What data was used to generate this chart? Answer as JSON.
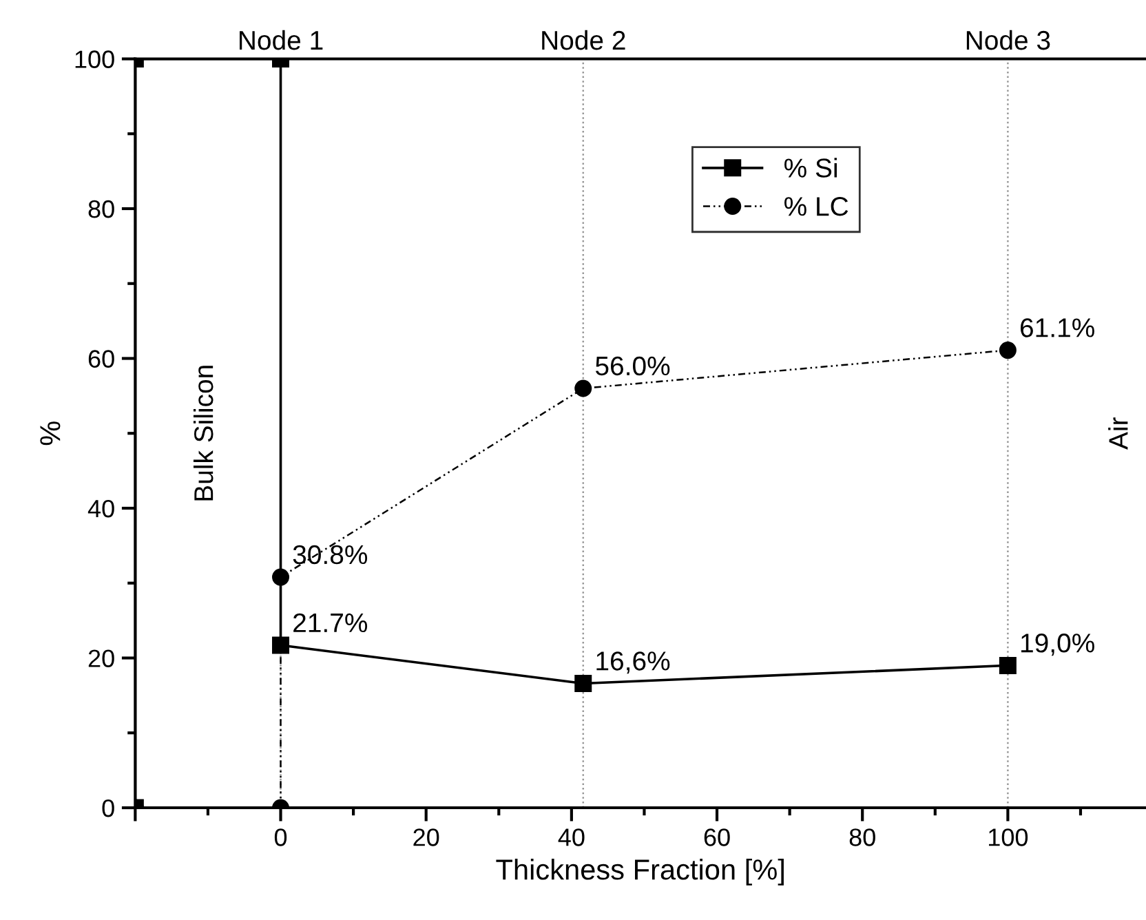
{
  "chart_data": {
    "type": "line",
    "xlabel": "Thickness Fraction [%]",
    "ylabel": "%",
    "xlim": [
      -20,
      119
    ],
    "ylim": [
      0,
      100
    ],
    "xticks": [
      {
        "value": -20,
        "label": null
      },
      0,
      20,
      40,
      60,
      80,
      100
    ],
    "yticks": [
      0,
      20,
      40,
      60,
      80,
      100
    ],
    "series": [
      {
        "name": "% Si",
        "color": "#000000",
        "marker": "square",
        "line_style": "solid",
        "x": [
          -20,
          -20,
          0,
          0,
          41.6,
          100
        ],
        "values": [
          0,
          100,
          100,
          21.7,
          16.6,
          19.0
        ],
        "value_labels": [
          null,
          null,
          null,
          "21.7%",
          "16,6%",
          "19,0%"
        ]
      },
      {
        "name": "% LC",
        "color": "#000000",
        "marker": "circle",
        "line_style": "dotted",
        "x": [
          -20,
          0,
          0,
          41.6,
          100
        ],
        "values": [
          0,
          0,
          30.8,
          56.0,
          61.1
        ],
        "value_labels": [
          null,
          null,
          "30.8%",
          "56.0%",
          "61.1%"
        ]
      }
    ],
    "ref_lines": [
      {
        "axis": "x",
        "value": 0,
        "label": "Node 1",
        "color": "#999999",
        "line_style": "dotted"
      },
      {
        "axis": "x",
        "value": 41.6,
        "label": "Node 2",
        "color": "#999999",
        "line_style": "dotted"
      },
      {
        "axis": "x",
        "value": 100,
        "label": "Node 3",
        "color": "#999999",
        "line_style": "dotted"
      }
    ],
    "annotations": [
      "Bulk Silicon",
      "Air"
    ],
    "grid": false,
    "legend": "top right"
  }
}
